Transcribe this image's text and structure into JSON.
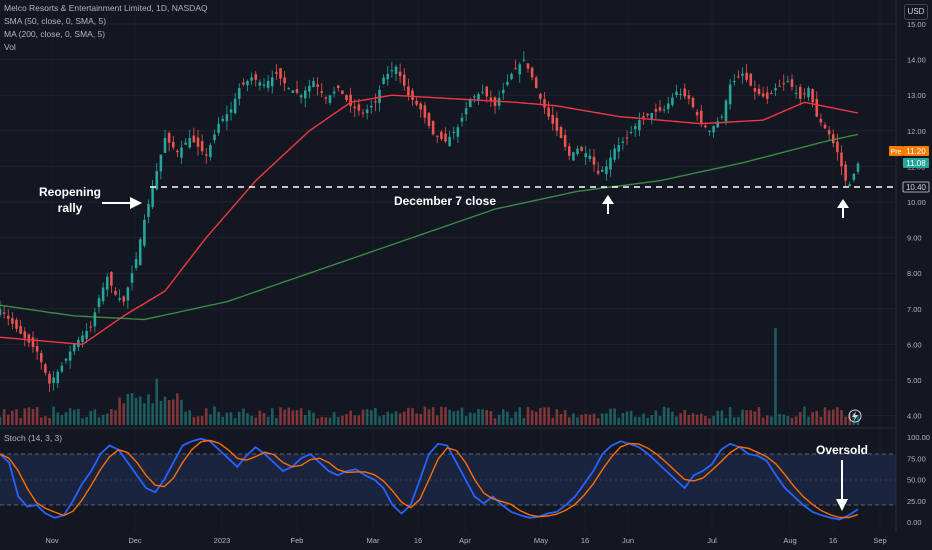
{
  "header": {
    "symbol_line": "Melco Resorts & Entertainment Limited, 1D, NASDAQ",
    "indicators": [
      "SMA (50, close, 0, SMA, 5)",
      "MA (200, close, 0, SMA, 5)",
      "Vol"
    ],
    "currency_button": "USD"
  },
  "price_labels": {
    "pre_tag": "Pre",
    "pre_value": "11.20",
    "last_value": "11.08",
    "line_value": "10.40"
  },
  "annotations": {
    "reopening_rally": [
      "Reopening",
      "rally"
    ],
    "december_close": "December 7 close",
    "oversold": "Oversold"
  },
  "colors": {
    "background": "#131722",
    "up": "#26a69a",
    "down": "#ef5350",
    "sma50": "#f23645",
    "ma200": "#4caf50",
    "stoch_k": "#2962ff",
    "stoch_d": "#ff6d00",
    "stoch_band": "#1e2a4a",
    "pre_tag": "#f57c00",
    "last_tag": "#26a69a"
  },
  "chart_data": [
    {
      "type": "candlestick",
      "title": "Melco Resorts & Entertainment Limited, 1D, NASDAQ",
      "x_tick_labels": [
        "Nov",
        "Dec",
        "2023",
        "Feb",
        "Mar",
        "16",
        "Apr",
        "May",
        "16",
        "Jun",
        "Jul",
        "Aug",
        "16",
        "Sep"
      ],
      "y_tick_labels": [
        "15.00",
        "14.00",
        "13.00",
        "12.00",
        "11.00",
        "10.00",
        "9.00",
        "8.00",
        "7.00",
        "6.00",
        "5.00",
        "4.00"
      ],
      "ylim": [
        3.9,
        15.2
      ],
      "grid": true,
      "horizontal_line": {
        "value": 10.4,
        "style": "dashed",
        "label": "December 7 close"
      },
      "price_path": [
        [
          0,
          7.0
        ],
        [
          5,
          6.3
        ],
        [
          9,
          5.8
        ],
        [
          12,
          4.9
        ],
        [
          15,
          5.4
        ],
        [
          18,
          6.0
        ],
        [
          22,
          6.5
        ],
        [
          24,
          7.3
        ],
        [
          26,
          7.9
        ],
        [
          28,
          7.4
        ],
        [
          30,
          7.2
        ],
        [
          33,
          8.4
        ],
        [
          35,
          9.5
        ],
        [
          37,
          10.4
        ],
        [
          40,
          11.8
        ],
        [
          43,
          11.4
        ],
        [
          46,
          11.8
        ],
        [
          50,
          11.3
        ],
        [
          53,
          12.2
        ],
        [
          56,
          12.6
        ],
        [
          58,
          13.2
        ],
        [
          61,
          13.5
        ],
        [
          64,
          13.3
        ],
        [
          67,
          13.6
        ],
        [
          70,
          13.2
        ],
        [
          73,
          13.0
        ],
        [
          76,
          13.4
        ],
        [
          79,
          12.9
        ],
        [
          82,
          13.2
        ],
        [
          85,
          12.7
        ],
        [
          88,
          12.5
        ],
        [
          91,
          12.8
        ],
        [
          93,
          13.5
        ],
        [
          96,
          13.8
        ],
        [
          99,
          13.0
        ],
        [
          102,
          12.6
        ],
        [
          105,
          11.9
        ],
        [
          108,
          11.7
        ],
        [
          111,
          12.1
        ],
        [
          114,
          12.9
        ],
        [
          117,
          13.1
        ],
        [
          120,
          12.7
        ],
        [
          124,
          13.6
        ],
        [
          127,
          14.0
        ],
        [
          129,
          13.5
        ],
        [
          131,
          12.9
        ],
        [
          133,
          12.4
        ],
        [
          136,
          11.8
        ],
        [
          138,
          11.3
        ],
        [
          140,
          11.5
        ],
        [
          143,
          11.3
        ],
        [
          145,
          10.8
        ],
        [
          147,
          11.0
        ],
        [
          149,
          11.5
        ],
        [
          152,
          11.8
        ],
        [
          155,
          12.3
        ],
        [
          158,
          12.5
        ],
        [
          161,
          12.6
        ],
        [
          164,
          13.1
        ],
        [
          167,
          12.9
        ],
        [
          170,
          12.2
        ],
        [
          172,
          12.0
        ],
        [
          175,
          12.4
        ],
        [
          177,
          13.3
        ],
        [
          180,
          13.6
        ],
        [
          183,
          13.1
        ],
        [
          186,
          12.9
        ],
        [
          188,
          13.2
        ],
        [
          191,
          13.4
        ],
        [
          194,
          12.9
        ],
        [
          196,
          13.2
        ],
        [
          198,
          12.4
        ],
        [
          201,
          11.9
        ],
        [
          203,
          11.4
        ],
        [
          205,
          10.6
        ],
        [
          206,
          10.5
        ],
        [
          208,
          11.08
        ]
      ],
      "sma50_path": [
        [
          0,
          6.2
        ],
        [
          20,
          6.0
        ],
        [
          30,
          6.8
        ],
        [
          40,
          7.5
        ],
        [
          50,
          9.0
        ],
        [
          62,
          10.6
        ],
        [
          75,
          12.0
        ],
        [
          85,
          12.8
        ],
        [
          95,
          13.0
        ],
        [
          110,
          12.9
        ],
        [
          125,
          12.8
        ],
        [
          135,
          12.7
        ],
        [
          150,
          12.4
        ],
        [
          170,
          12.2
        ],
        [
          185,
          12.3
        ],
        [
          195,
          12.8
        ],
        [
          208,
          12.5
        ]
      ],
      "ma200_path": [
        [
          0,
          7.1
        ],
        [
          18,
          6.8
        ],
        [
          35,
          6.7
        ],
        [
          55,
          7.2
        ],
        [
          75,
          8.0
        ],
        [
          100,
          9.0
        ],
        [
          120,
          9.8
        ],
        [
          140,
          10.3
        ],
        [
          160,
          10.6
        ],
        [
          180,
          11.1
        ],
        [
          200,
          11.7
        ],
        [
          208,
          11.9
        ]
      ],
      "volume_spikes": [
        {
          "day": 38,
          "relative": 0.42
        },
        {
          "day": 188,
          "relative": 0.88
        }
      ],
      "price_labels": {
        "pre": 11.2,
        "last": 11.08,
        "line": 10.4
      }
    },
    {
      "type": "line",
      "title": "Stoch (14, 3, 3)",
      "y_tick_labels": [
        "100.00",
        "75.00",
        "50.00",
        "25.00",
        "0.00"
      ],
      "ylim": [
        -5,
        105
      ],
      "bands": {
        "upper": 80,
        "middle": 50,
        "lower": 20
      },
      "series": [
        {
          "name": "Stoch (14, 3, 3)",
          "values": [
            80,
            70,
            30,
            18,
            20,
            10,
            5,
            8,
            25,
            45,
            60,
            80,
            90,
            85,
            70,
            55,
            40,
            35,
            50,
            70,
            90,
            95,
            98,
            95,
            85,
            75,
            65,
            78,
            88,
            80,
            70,
            60,
            65,
            75,
            80,
            70,
            60,
            55,
            60,
            62,
            55,
            50,
            40,
            20,
            10,
            20,
            50,
            80,
            92,
            90,
            70,
            50,
            30,
            22,
            30,
            20,
            12,
            8,
            5,
            6,
            10,
            12,
            20,
            30,
            45,
            60,
            80,
            90,
            95,
            92,
            88,
            80,
            70,
            60,
            50,
            40,
            55,
            60,
            68,
            85,
            92,
            88,
            80,
            78,
            72,
            55,
            40,
            30,
            20,
            12,
            8,
            5,
            3,
            8,
            15
          ]
        }
      ]
    }
  ]
}
